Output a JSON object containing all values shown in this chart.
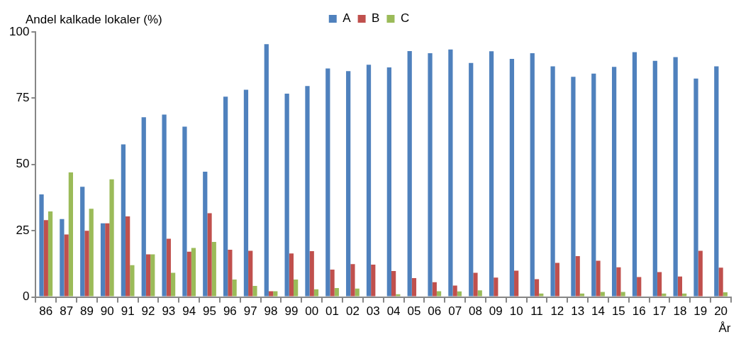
{
  "chart_data": {
    "type": "bar",
    "ylabel": "Andel kalkade lokaler (%)",
    "xlabel": "År",
    "categories": [
      "86",
      "87",
      "89",
      "90",
      "91",
      "92",
      "93",
      "94",
      "95",
      "96",
      "97",
      "98",
      "99",
      "00",
      "01",
      "02",
      "03",
      "04",
      "05",
      "06",
      "07",
      "08",
      "09",
      "10",
      "11",
      "12",
      "13",
      "14",
      "15",
      "16",
      "17",
      "18",
      "19",
      "20"
    ],
    "series": [
      {
        "name": "A",
        "color": "#4f81bd",
        "values": [
          38.7,
          29.4,
          41.6,
          27.8,
          57.6,
          67.8,
          68.8,
          64.3,
          47.3,
          75.6,
          78.2,
          95.4,
          76.7,
          79.6,
          86.2,
          85.2,
          87.6,
          86.6,
          92.8,
          92.0,
          93.4,
          88.3,
          92.7,
          89.8,
          92.0,
          87.0,
          83.1,
          84.3,
          86.8,
          92.4,
          89.1,
          90.5,
          82.4,
          87.0
        ]
      },
      {
        "name": "B",
        "color": "#c0504d",
        "values": [
          29.0,
          23.6,
          25.0,
          27.8,
          30.4,
          16.1,
          22.0,
          17.1,
          31.6,
          17.8,
          17.4,
          2.2,
          16.4,
          17.3,
          10.3,
          12.4,
          12.2,
          9.8,
          7.1,
          5.6,
          4.3,
          9.1,
          7.3,
          9.9,
          6.7,
          12.9,
          15.4,
          13.7,
          11.2,
          7.5,
          9.4,
          7.7,
          17.4,
          11.1
        ]
      },
      {
        "name": "C",
        "color": "#9bbb59",
        "values": [
          32.3,
          47.0,
          33.3,
          44.4,
          12.0,
          16.1,
          9.1,
          18.5,
          20.8,
          6.6,
          4.2,
          2.2,
          6.6,
          2.9,
          3.4,
          3.2,
          0,
          1.0,
          0,
          2.2,
          2.1,
          2.5,
          0,
          0,
          1.3,
          0,
          1.3,
          1.9,
          1.9,
          0,
          1.3,
          1.3,
          0,
          1.8
        ]
      }
    ],
    "ylim": [
      0,
      100
    ],
    "yticks": [
      0,
      25,
      50,
      75,
      100
    ],
    "grid": false,
    "legend": "top"
  }
}
